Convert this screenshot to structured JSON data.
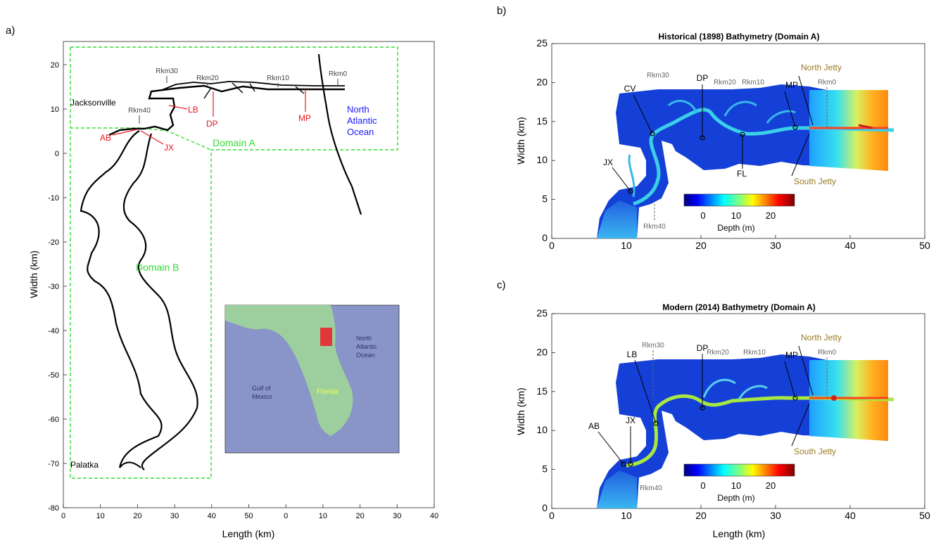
{
  "panel_a": {
    "label": "a)",
    "xlabel": "Length (km)",
    "ylabel": "Width (km)",
    "xticks": [
      "0",
      "10",
      "20",
      "30",
      "40",
      "50",
      "0",
      "10",
      "20",
      "30",
      "40"
    ],
    "yticks": [
      "20",
      "10",
      "0",
      "-10",
      "-20",
      "-30",
      "-40",
      "-50",
      "-60",
      "-70",
      "-80"
    ],
    "rkm": [
      "Rkm30",
      "Rkm20",
      "Rkm10",
      "Rkm0",
      "Rkm40"
    ],
    "places": {
      "jacksonville": "Jacksonville",
      "palatka": "Palatka",
      "ocean": [
        "North",
        "Atlantic",
        "Ocean"
      ]
    },
    "sites": [
      "LB",
      "DP",
      "MP",
      "AB",
      "JX"
    ],
    "domain_a": "Domain A",
    "domain_b": "Domain B",
    "inset": {
      "ocean": [
        "North",
        "Atlantic",
        "Ocean"
      ],
      "gulf": [
        "Gulf of",
        "Mexico"
      ],
      "state": "Florida"
    },
    "colors": {
      "domain": "#33dd33",
      "site": "#e8161c",
      "ocean_text": "#1a1aff",
      "inset_land": "#9ccf9d",
      "inset_sea": "#8995c9",
      "inset_box": "#e0383a"
    }
  },
  "panel_b": {
    "label": "b)",
    "title": "Historical (1898) Bathymetry (Domain A)",
    "ylabel": "Width (km)",
    "xticks": [
      "0",
      "10",
      "20",
      "30",
      "40",
      "50"
    ],
    "yticks": [
      "0",
      "5",
      "10",
      "15",
      "20",
      "25"
    ],
    "rkm": [
      "Rkm30",
      "Rkm20",
      "Rkm10",
      "Rkm0",
      "Rkm40"
    ],
    "sites": [
      "CV",
      "DP",
      "MP",
      "JX",
      "FL"
    ],
    "jetties": [
      "North Jetty",
      "South Jetty"
    ],
    "cbar_ticks": [
      "0",
      "10",
      "20"
    ],
    "cbar_label": "Depth (m)"
  },
  "panel_c": {
    "label": "c)",
    "title": "Modern (2014) Bathymetry (Domain A)",
    "xlabel": "Length (km)",
    "ylabel": "Width (km)",
    "xticks": [
      "0",
      "10",
      "20",
      "30",
      "40",
      "50"
    ],
    "yticks": [
      "0",
      "5",
      "10",
      "15",
      "20",
      "25"
    ],
    "rkm": [
      "Rkm30",
      "Rkm20",
      "Rkm10",
      "Rkm0",
      "Rkm40"
    ],
    "sites": [
      "LB",
      "DP",
      "MP",
      "AB",
      "JX"
    ],
    "jetties": [
      "North Jetty",
      "South Jetty"
    ],
    "cbar_ticks": [
      "0",
      "10",
      "20"
    ],
    "cbar_label": "Depth (m)"
  }
}
